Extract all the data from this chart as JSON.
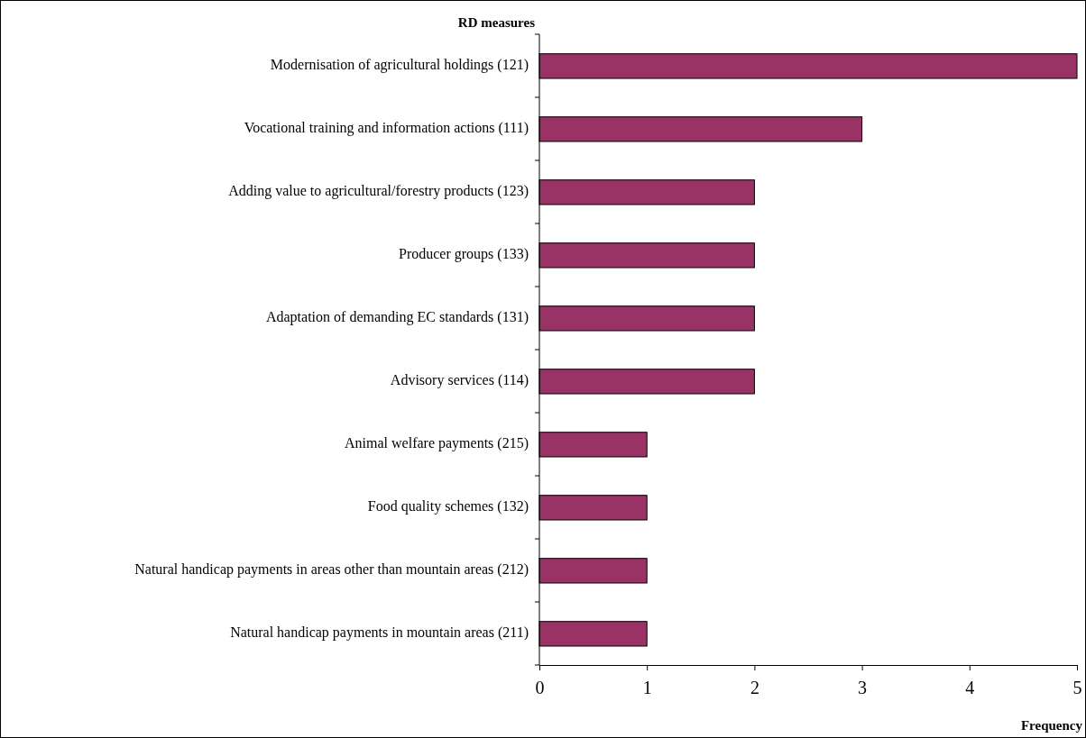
{
  "chart_data": {
    "type": "bar",
    "orientation": "horizontal",
    "ylabel": "RD measures",
    "xlabel": "Frequency",
    "categories": [
      "Modernisation of agricultural holdings (121)",
      "Vocational training and information actions (111)",
      "Adding value to agricultural/forestry products (123)",
      "Producer groups (133)",
      "Adaptation of demanding EC standards (131)",
      "Advisory services (114)",
      "Animal welfare payments (215)",
      "Food quality schemes (132)",
      "Natural handicap payments in areas other than mountain areas (212)",
      "Natural handicap payments in mountain areas (211)"
    ],
    "values": [
      5,
      3,
      2,
      2,
      2,
      2,
      1,
      1,
      1,
      1
    ],
    "color": "#993366",
    "xlim": [
      0,
      5
    ],
    "xticks": [
      0,
      1,
      2,
      3,
      4,
      5
    ],
    "grid": false
  }
}
